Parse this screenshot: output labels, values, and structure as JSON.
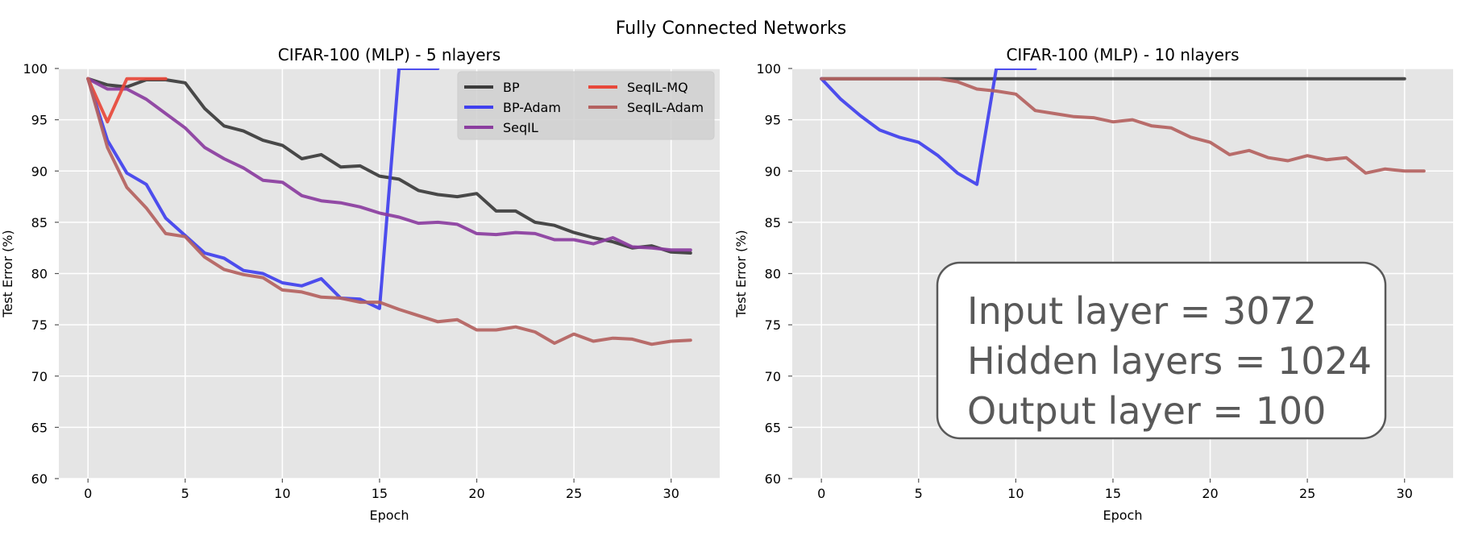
{
  "figure": {
    "title": "Fully Connected Networks"
  },
  "colors": {
    "BP": "#3b3b3b",
    "BP-Adam": "#4040ee",
    "SeqIL": "#8b3d9f",
    "SeqIL-MQ": "#e8483a",
    "SeqIL-Adam": "#b46260"
  },
  "chart_data": [
    {
      "type": "line",
      "title": "CIFAR-100 (MLP) - 5 nlayers",
      "xlabel": "Epoch",
      "ylabel": "Test Error (%)",
      "xlim": [
        -1.5,
        32.5
      ],
      "ylim": [
        60,
        100
      ],
      "xticks": [
        0,
        5,
        10,
        15,
        20,
        25,
        30
      ],
      "yticks": [
        60,
        65,
        70,
        75,
        80,
        85,
        90,
        95,
        100
      ],
      "grid": true,
      "legend": {
        "placement": "top-right",
        "columns": 2,
        "entries": [
          "BP",
          "BP-Adam",
          "SeqIL",
          "SeqIL-MQ",
          "SeqIL-Adam"
        ]
      },
      "series": [
        {
          "name": "BP",
          "x": [
            0,
            1,
            2,
            3,
            4,
            5,
            6,
            7,
            8,
            9,
            10,
            11,
            12,
            13,
            14,
            15,
            16,
            17,
            18,
            19,
            20,
            21,
            22,
            23,
            24,
            25,
            26,
            27,
            28,
            29,
            30,
            31
          ],
          "y": [
            99,
            98.4,
            98.2,
            98.9,
            98.9,
            98.6,
            96.1,
            94.4,
            93.9,
            93.0,
            92.5,
            91.2,
            91.6,
            90.4,
            90.5,
            89.5,
            89.2,
            88.1,
            87.7,
            87.5,
            87.8,
            86.1,
            86.1,
            85.0,
            84.7,
            84.0,
            83.5,
            83.1,
            82.5,
            82.7,
            82.1,
            82.0
          ]
        },
        {
          "name": "BP-Adam",
          "x": [
            0,
            1,
            2,
            3,
            4,
            5,
            6,
            7,
            8,
            9,
            10,
            11,
            12,
            13,
            14,
            15,
            16,
            17,
            18
          ],
          "y": [
            99,
            93.0,
            89.8,
            88.7,
            85.4,
            83.7,
            82.0,
            81.5,
            80.3,
            80.0,
            79.1,
            78.8,
            79.5,
            77.6,
            77.5,
            76.6,
            100,
            100,
            100
          ]
        },
        {
          "name": "SeqIL",
          "x": [
            0,
            1,
            2,
            3,
            4,
            5,
            6,
            7,
            8,
            9,
            10,
            11,
            12,
            13,
            14,
            15,
            16,
            17,
            18,
            19,
            20,
            21,
            22,
            23,
            24,
            25,
            26,
            27,
            28,
            29,
            30,
            31
          ],
          "y": [
            99,
            98.0,
            98.0,
            97.0,
            95.6,
            94.2,
            92.3,
            91.2,
            90.3,
            89.1,
            88.9,
            87.6,
            87.1,
            86.9,
            86.5,
            85.9,
            85.5,
            84.9,
            85.0,
            84.8,
            83.9,
            83.8,
            84.0,
            83.9,
            83.3,
            83.3,
            82.9,
            83.5,
            82.6,
            82.5,
            82.3,
            82.3
          ]
        },
        {
          "name": "SeqIL-MQ",
          "x": [
            0,
            1,
            2,
            3,
            4
          ],
          "y": [
            99,
            94.8,
            99,
            99,
            99
          ]
        },
        {
          "name": "SeqIL-Adam",
          "x": [
            0,
            1,
            2,
            3,
            4,
            5,
            6,
            7,
            8,
            9,
            10,
            11,
            12,
            13,
            14,
            15,
            16,
            17,
            18,
            19,
            20,
            21,
            22,
            23,
            24,
            25,
            26,
            27,
            28,
            29,
            30,
            31
          ],
          "y": [
            99,
            92.3,
            88.4,
            86.4,
            83.9,
            83.6,
            81.6,
            80.4,
            79.9,
            79.6,
            78.4,
            78.2,
            77.7,
            77.6,
            77.2,
            77.2,
            76.5,
            75.9,
            75.3,
            75.5,
            74.5,
            74.5,
            74.8,
            74.3,
            73.2,
            74.1,
            73.4,
            73.7,
            73.6,
            73.1,
            73.4,
            73.5
          ]
        }
      ]
    },
    {
      "type": "line",
      "title": "CIFAR-100 (MLP) - 10 nlayers",
      "xlabel": "Epoch",
      "ylabel": "Test Error (%)",
      "xlim": [
        -1.5,
        32.5
      ],
      "ylim": [
        60,
        100
      ],
      "xticks": [
        0,
        5,
        10,
        15,
        20,
        25,
        30
      ],
      "yticks": [
        60,
        65,
        70,
        75,
        80,
        85,
        90,
        95,
        100
      ],
      "grid": true,
      "annotation": {
        "lines": [
          "Input layer = 3072",
          "Hidden layers = 1024",
          "Output layer = 100"
        ]
      },
      "series": [
        {
          "name": "BP",
          "x": [
            0,
            5,
            10,
            15,
            20,
            25,
            30
          ],
          "y": [
            99,
            99,
            99,
            99,
            99,
            99,
            99
          ]
        },
        {
          "name": "BP-Adam",
          "x": [
            0,
            1,
            2,
            3,
            4,
            5,
            6,
            7,
            8,
            9,
            10,
            11
          ],
          "y": [
            99,
            97.0,
            95.4,
            94.0,
            93.3,
            92.8,
            91.5,
            89.8,
            88.7,
            100,
            100,
            100
          ]
        },
        {
          "name": "SeqIL-Adam",
          "x": [
            0,
            1,
            2,
            3,
            4,
            5,
            6,
            7,
            8,
            9,
            10,
            11,
            12,
            13,
            14,
            15,
            16,
            17,
            18,
            19,
            20,
            21,
            22,
            23,
            24,
            25,
            26,
            27,
            28,
            29,
            30,
            31
          ],
          "y": [
            99,
            99,
            99,
            99,
            99,
            99,
            99,
            98.7,
            98.0,
            97.8,
            97.5,
            95.9,
            95.6,
            95.3,
            95.2,
            94.8,
            95.0,
            94.4,
            94.2,
            93.3,
            92.8,
            91.6,
            92.0,
            91.3,
            91.0,
            91.5,
            91.1,
            91.3,
            89.8,
            90.2,
            90.0,
            90.0
          ]
        }
      ]
    }
  ]
}
